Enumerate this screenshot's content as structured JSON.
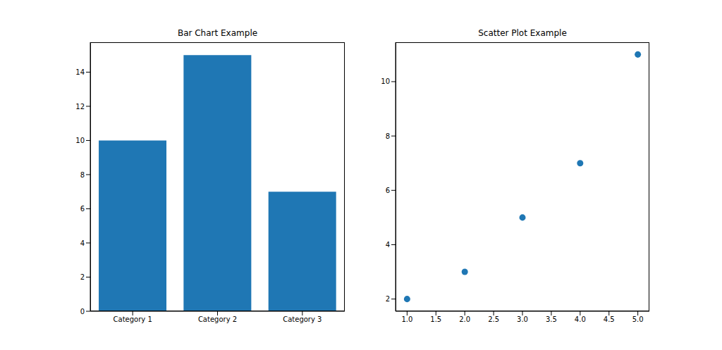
{
  "chart_data": [
    {
      "type": "bar",
      "title": "Bar Chart Example",
      "categories": [
        "Category 1",
        "Category 2",
        "Category 3"
      ],
      "values": [
        10,
        15,
        7
      ],
      "color": "#1f77b4",
      "ylim": [
        0,
        15.75
      ],
      "yticks": [
        0,
        2,
        4,
        6,
        8,
        10,
        12,
        14
      ]
    },
    {
      "type": "scatter",
      "title": "Scatter Plot Example",
      "x": [
        1,
        2,
        3,
        4,
        5
      ],
      "values": [
        2,
        3,
        5,
        7,
        11
      ],
      "color": "#1f77b4",
      "xlim": [
        0.8,
        5.2
      ],
      "xticks": [
        {
          "value": 1,
          "label": "1.0"
        },
        {
          "value": 1.5,
          "label": "1.5"
        },
        {
          "value": 2,
          "label": "2.0"
        },
        {
          "value": 2.5,
          "label": "2.5"
        },
        {
          "value": 3,
          "label": "3.0"
        },
        {
          "value": 3.5,
          "label": "3.5"
        },
        {
          "value": 4,
          "label": "4.0"
        },
        {
          "value": 4.5,
          "label": "4.5"
        },
        {
          "value": 5,
          "label": "5.0"
        }
      ],
      "ylim": [
        1.55,
        11.45
      ],
      "yticks": [
        2,
        4,
        6,
        8,
        10
      ]
    }
  ]
}
